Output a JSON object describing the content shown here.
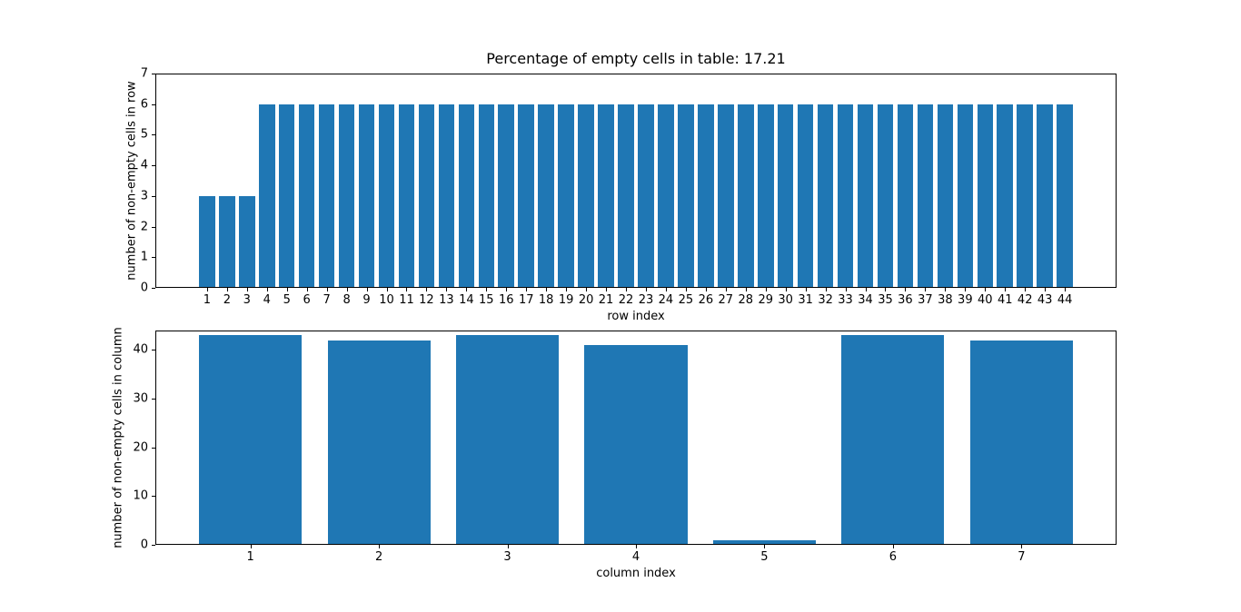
{
  "figure": {
    "background": "#ffffff",
    "bar_color": "#1f77b4",
    "spine_color": "#000000",
    "text_color": "#000000"
  },
  "chart_data": [
    {
      "type": "bar",
      "title": "Percentage of empty cells in table: 17.21",
      "xlabel": "row index",
      "ylabel": "number of non-empty cells in row",
      "categories": [
        1,
        2,
        3,
        4,
        5,
        6,
        7,
        8,
        9,
        10,
        11,
        12,
        13,
        14,
        15,
        16,
        17,
        18,
        19,
        20,
        21,
        22,
        23,
        24,
        25,
        26,
        27,
        28,
        29,
        30,
        31,
        32,
        33,
        34,
        35,
        36,
        37,
        38,
        39,
        40,
        41,
        42,
        43,
        44
      ],
      "values": [
        3,
        3,
        3,
        6,
        6,
        6,
        6,
        6,
        6,
        6,
        6,
        6,
        6,
        6,
        6,
        6,
        6,
        6,
        6,
        6,
        6,
        6,
        6,
        6,
        6,
        6,
        6,
        6,
        6,
        6,
        6,
        6,
        6,
        6,
        6,
        6,
        6,
        6,
        6,
        6,
        6,
        6,
        6,
        6
      ],
      "yticks": [
        0,
        1,
        2,
        3,
        4,
        5,
        6,
        7
      ],
      "ylim": [
        0,
        7
      ],
      "xlim": [
        -1.59,
        46.59
      ],
      "bar_width": 0.8,
      "bar_color": "#1f77b4",
      "grid": false,
      "legend": null
    },
    {
      "type": "bar",
      "title": "",
      "xlabel": "column index",
      "ylabel": "number of non-empty cells in column",
      "categories": [
        1,
        2,
        3,
        4,
        5,
        6,
        7
      ],
      "values": [
        43,
        42,
        43,
        41,
        1,
        43,
        42
      ],
      "yticks": [
        0,
        10,
        20,
        30,
        40
      ],
      "ylim": [
        0,
        44
      ],
      "xlim": [
        0.26,
        7.74
      ],
      "bar_width": 0.8,
      "bar_color": "#1f77b4",
      "grid": false,
      "legend": null
    }
  ]
}
